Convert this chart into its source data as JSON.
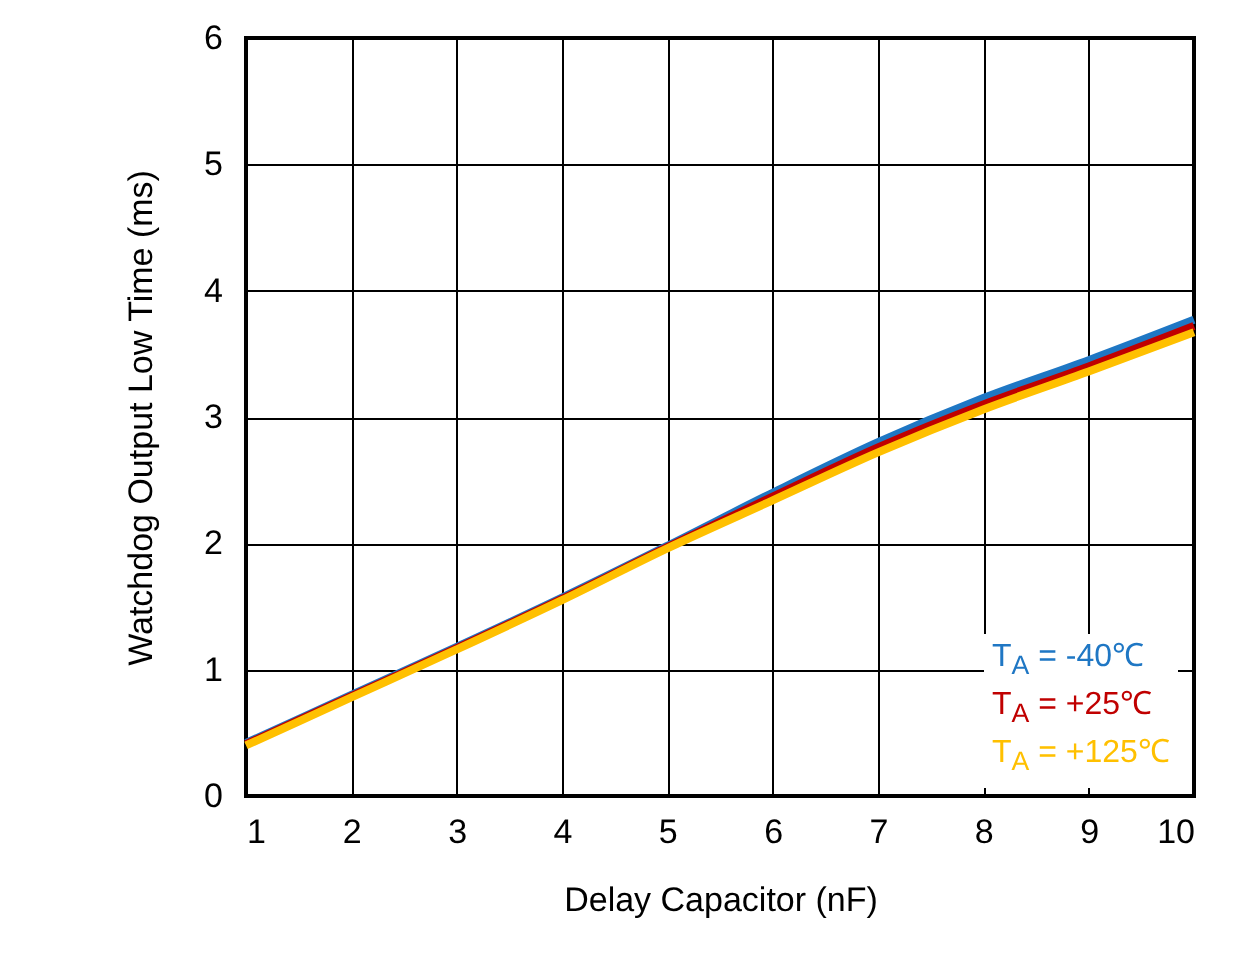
{
  "chart_data": {
    "type": "line",
    "xlabel": "Delay Capacitor (nF)",
    "ylabel": "Watchdog Output Low Time (ms)",
    "x": [
      1,
      2,
      3,
      4,
      5,
      6,
      7,
      8,
      9,
      10
    ],
    "series": [
      {
        "name": "T$_{A}$ = -40℃",
        "color": "#1f77c4",
        "values": [
          0.42,
          0.8,
          1.18,
          1.57,
          1.98,
          2.4,
          2.8,
          3.15,
          3.45,
          3.77
        ]
      },
      {
        "name": "T$_{A}$ = +25℃",
        "color": "#c00000",
        "values": [
          0.41,
          0.79,
          1.17,
          1.56,
          1.97,
          2.37,
          2.76,
          3.1,
          3.4,
          3.72
        ]
      },
      {
        "name": "T$_{A}$ = +125℃",
        "color": "#ffc000",
        "values": [
          0.4,
          0.78,
          1.16,
          1.55,
          1.96,
          2.34,
          2.72,
          3.06,
          3.36,
          3.67
        ]
      }
    ],
    "xlim": [
      1,
      10
    ],
    "xticks": [
      1,
      2,
      3,
      4,
      5,
      6,
      7,
      8,
      9,
      10
    ],
    "ylim": [
      0,
      6
    ],
    "yticks": [
      0,
      1,
      2,
      3,
      4,
      5,
      6
    ],
    "grid": true,
    "legend": "bottom right",
    "line_style": "solid"
  }
}
